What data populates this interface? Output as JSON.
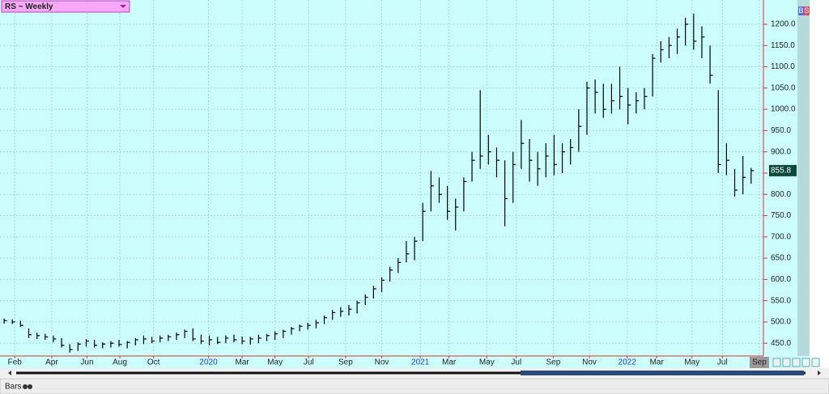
{
  "chart_data": {
    "type": "ohlc",
    "title": "RS ~ Weekly",
    "color": "#000000",
    "grid": true,
    "high": [
      508,
      506,
      503,
      485,
      475,
      472,
      468,
      462,
      448,
      452,
      460,
      458,
      452,
      455,
      458,
      455,
      462,
      468,
      465,
      468,
      470,
      475,
      482,
      485,
      470,
      468,
      465,
      468,
      470,
      466,
      465,
      470,
      472,
      478,
      482,
      488,
      494,
      498,
      505,
      515,
      528,
      535,
      540,
      550,
      565,
      585,
      605,
      630,
      650,
      690,
      700,
      780,
      855,
      840,
      820,
      790,
      840,
      900,
      1045,
      940,
      910,
      880,
      900,
      975,
      930,
      900,
      920,
      940,
      920,
      930,
      1000,
      1065,
      1070,
      1060,
      1060,
      1100,
      1050,
      1040,
      1050,
      1130,
      1160,
      1170,
      1190,
      1215,
      1225,
      1195,
      1150,
      1045,
      920,
      860,
      890,
      862
    ],
    "low": [
      496,
      495,
      488,
      462,
      460,
      458,
      452,
      440,
      428,
      432,
      442,
      440,
      438,
      440,
      442,
      438,
      445,
      448,
      450,
      452,
      455,
      458,
      462,
      455,
      448,
      445,
      448,
      450,
      452,
      448,
      447,
      450,
      455,
      458,
      462,
      470,
      478,
      482,
      485,
      495,
      505,
      512,
      515,
      520,
      540,
      555,
      570,
      595,
      615,
      640,
      645,
      690,
      760,
      780,
      740,
      715,
      760,
      830,
      860,
      870,
      840,
      725,
      780,
      860,
      830,
      820,
      840,
      845,
      850,
      870,
      900,
      940,
      990,
      980,
      990,
      1000,
      965,
      990,
      1000,
      1030,
      1110,
      1120,
      1130,
      1150,
      1140,
      1120,
      1060,
      850,
      845,
      795,
      800,
      825
    ],
    "close": [
      503,
      500,
      492,
      470,
      468,
      465,
      460,
      445,
      435,
      448,
      455,
      445,
      448,
      450,
      447,
      452,
      458,
      460,
      455,
      462,
      465,
      470,
      478,
      460,
      455,
      458,
      452,
      462,
      458,
      455,
      460,
      462,
      468,
      472,
      478,
      484,
      490,
      492,
      498,
      510,
      522,
      525,
      530,
      545,
      558,
      578,
      598,
      622,
      640,
      660,
      690,
      760,
      820,
      800,
      760,
      770,
      830,
      880,
      890,
      900,
      880,
      790,
      870,
      920,
      880,
      860,
      890,
      870,
      900,
      910,
      960,
      1050,
      1040,
      1000,
      1020,
      1030,
      1010,
      1020,
      1030,
      1120,
      1140,
      1150,
      1170,
      1200,
      1160,
      1170,
      1080,
      870,
      880,
      810,
      840,
      855.8
    ],
    "xlim": [
      -0.5,
      92.5
    ],
    "xticks": [
      {
        "value": 1.3,
        "label": "Feb"
      },
      {
        "value": 5.8,
        "label": "Apr"
      },
      {
        "value": 10.1,
        "label": "Jun"
      },
      {
        "value": 14.1,
        "label": "Aug"
      },
      {
        "value": 18.2,
        "label": "Oct"
      },
      {
        "value": 24.9,
        "label": "2020"
      },
      {
        "value": 29,
        "label": "Mar"
      },
      {
        "value": 33,
        "label": "May"
      },
      {
        "value": 37.1,
        "label": "Jul"
      },
      {
        "value": 41.6,
        "label": "Sep"
      },
      {
        "value": 46,
        "label": "Nov"
      },
      {
        "value": 50.7,
        "label": "2021"
      },
      {
        "value": 54.2,
        "label": "Mar"
      },
      {
        "value": 58.8,
        "label": "May"
      },
      {
        "value": 62.4,
        "label": "Jul"
      },
      {
        "value": 66.9,
        "label": "Sep"
      },
      {
        "value": 71.3,
        "label": "Nov"
      },
      {
        "value": 75.9,
        "label": "2022"
      },
      {
        "value": 79.5,
        "label": "Mar"
      },
      {
        "value": 83.8,
        "label": "May"
      },
      {
        "value": 87.5,
        "label": "Jul"
      },
      {
        "value": 92,
        "label": "Sep"
      }
    ],
    "ylim": [
      420,
      1257
    ],
    "yticks": [
      {
        "value": 450,
        "label": "450.0"
      },
      {
        "value": 500,
        "label": "500.0"
      },
      {
        "value": 550,
        "label": "550.0"
      },
      {
        "value": 600,
        "label": "600.0"
      },
      {
        "value": 650,
        "label": "650.0"
      },
      {
        "value": 700,
        "label": "700.0"
      },
      {
        "value": 750,
        "label": "750.0"
      },
      {
        "value": 800,
        "label": "800.0"
      },
      {
        "value": 850,
        "label": "850.0"
      },
      {
        "value": 900,
        "label": "900.0"
      },
      {
        "value": 950,
        "label": "950.0"
      },
      {
        "value": 1000,
        "label": "1000.0"
      },
      {
        "value": 1050,
        "label": "1050.0"
      },
      {
        "value": 1100,
        "label": "1100.0"
      },
      {
        "value": 1150,
        "label": "1150.0"
      },
      {
        "value": 1200,
        "label": "1200.0"
      }
    ]
  },
  "ui": {
    "mode": "Bars",
    "buttons": [
      "B",
      "S"
    ]
  }
}
